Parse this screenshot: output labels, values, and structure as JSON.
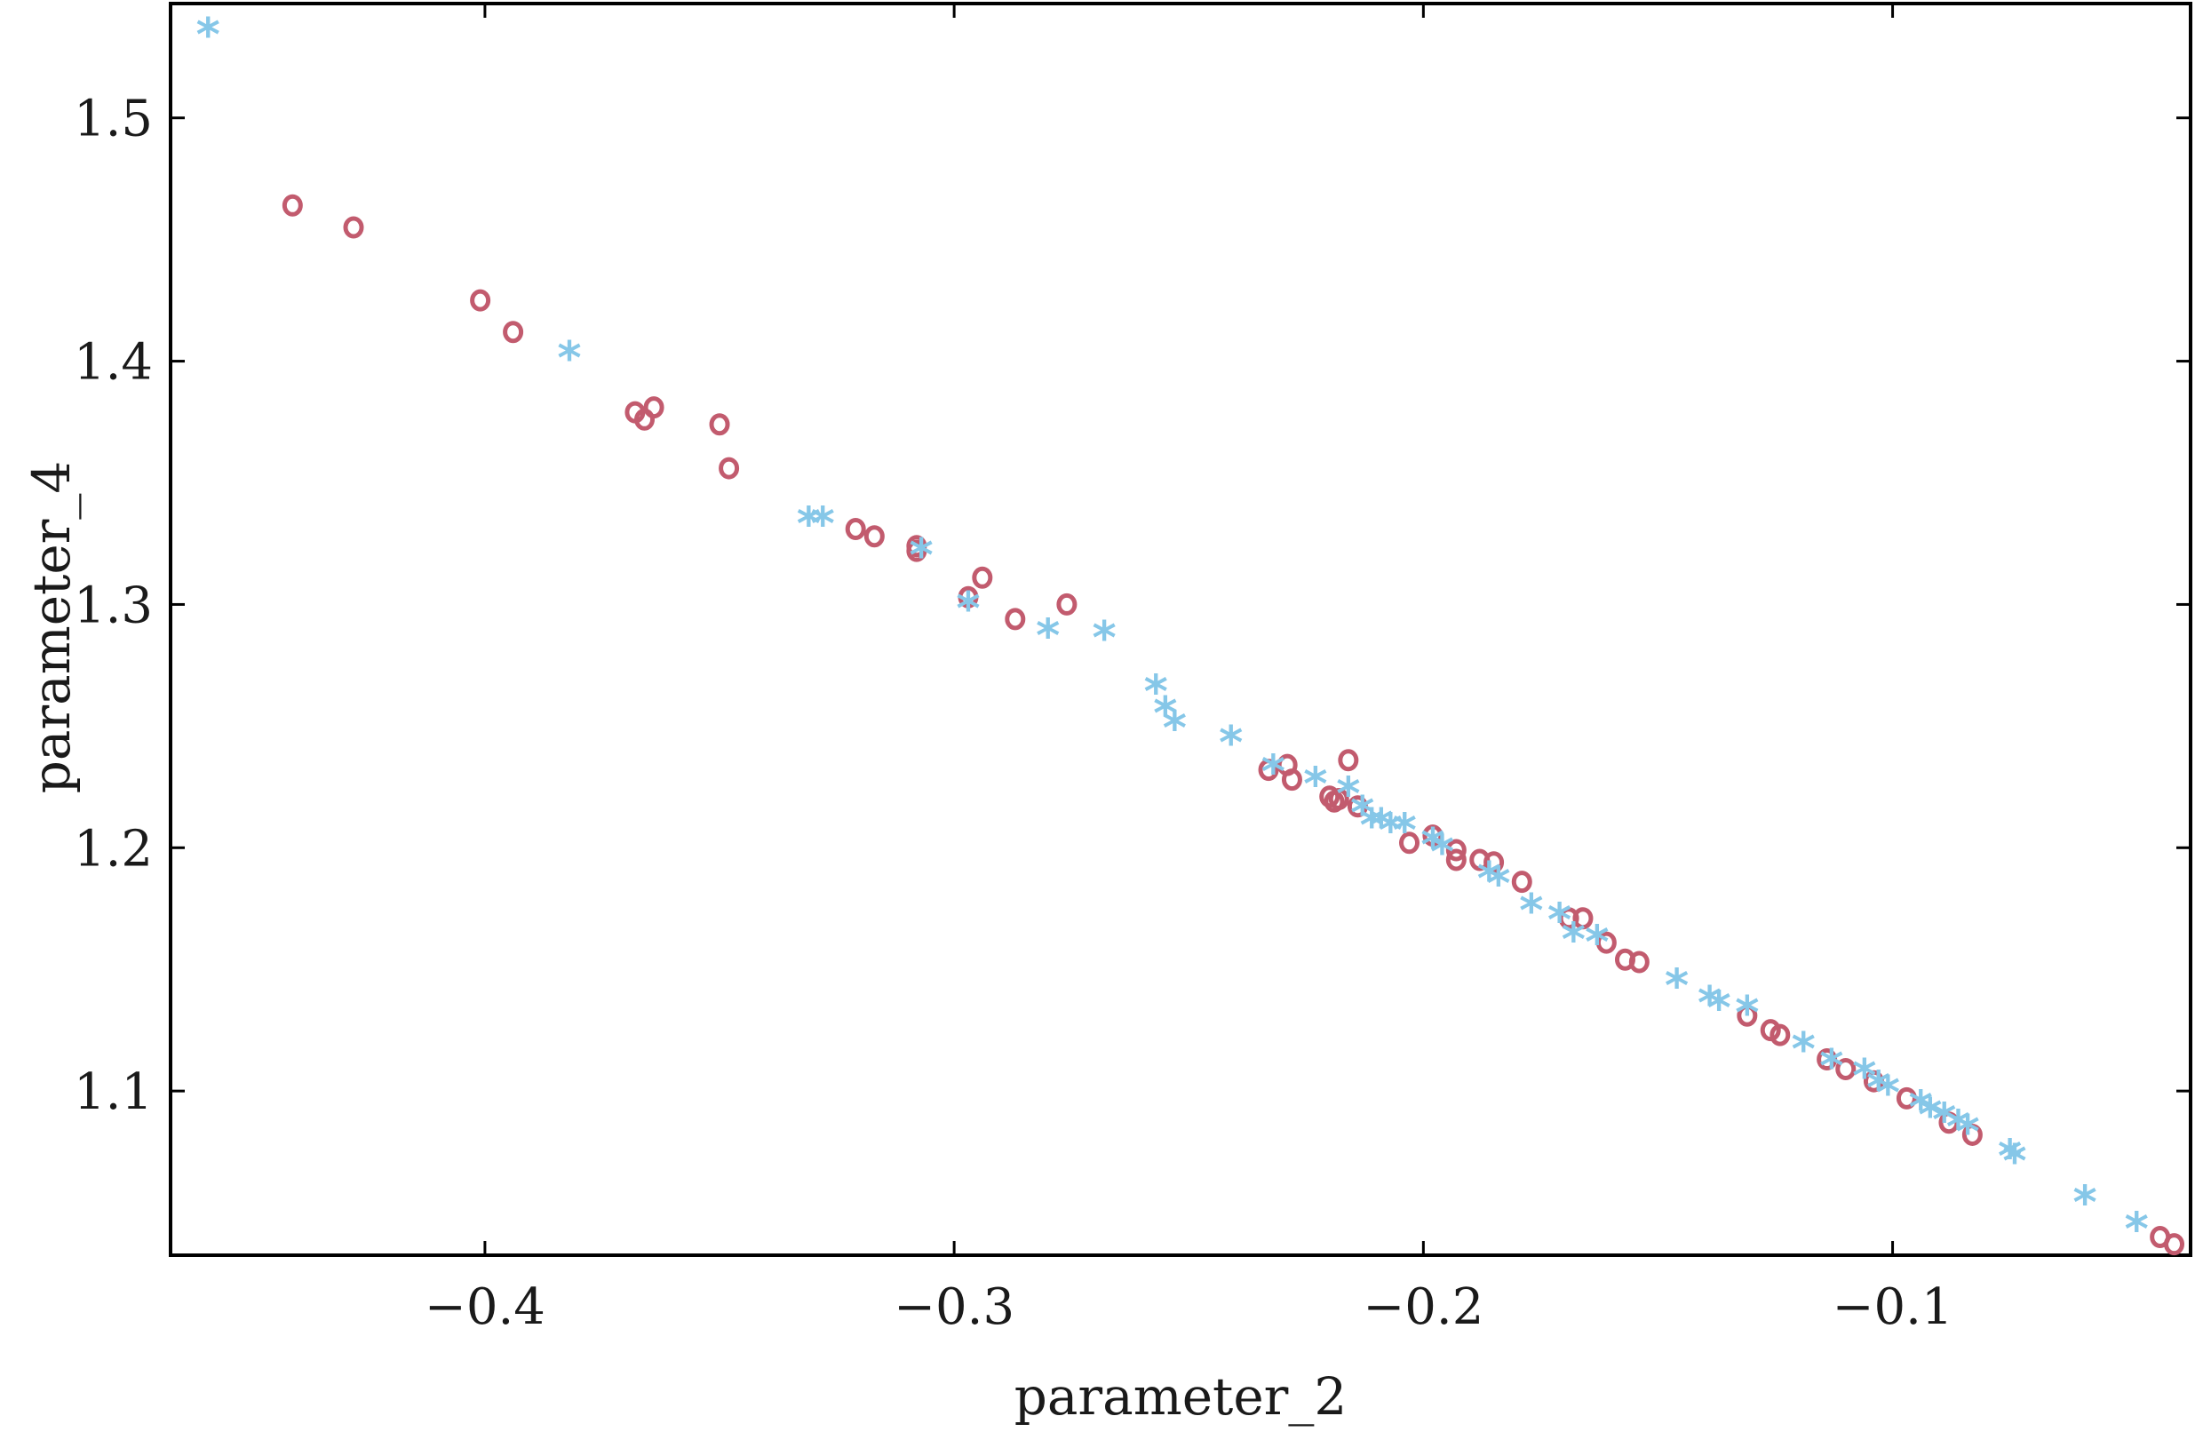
{
  "chart_data": {
    "type": "scatter",
    "xlabel": "parameter_2",
    "ylabel": "parameter_4",
    "xlim": [
      -0.467,
      -0.0365
    ],
    "ylim": [
      1.0325,
      1.547
    ],
    "xticks": [
      -0.4,
      -0.3,
      -0.2,
      -0.1
    ],
    "xtick_labels": [
      "−0.4",
      "−0.3",
      "−0.2",
      "−0.1"
    ],
    "yticks": [
      1.1,
      1.2,
      1.3,
      1.4,
      1.5
    ],
    "ytick_labels": [
      "1.1",
      "1.2",
      "1.3",
      "1.4",
      "1.5"
    ],
    "grid": false,
    "legend": "none",
    "series": [
      {
        "marker": "o",
        "color": "#c25b6e",
        "points": [
          [
            -0.441,
            1.464
          ],
          [
            -0.428,
            1.455
          ],
          [
            -0.401,
            1.425
          ],
          [
            -0.394,
            1.412
          ],
          [
            -0.368,
            1.379
          ],
          [
            -0.366,
            1.376
          ],
          [
            -0.364,
            1.381
          ],
          [
            -0.35,
            1.374
          ],
          [
            -0.348,
            1.356
          ],
          [
            -0.321,
            1.331
          ],
          [
            -0.317,
            1.328
          ],
          [
            -0.308,
            1.324
          ],
          [
            -0.308,
            1.322
          ],
          [
            -0.297,
            1.303
          ],
          [
            -0.294,
            1.311
          ],
          [
            -0.287,
            1.294
          ],
          [
            -0.276,
            1.3
          ],
          [
            -0.233,
            1.232
          ],
          [
            -0.229,
            1.234
          ],
          [
            -0.228,
            1.228
          ],
          [
            -0.22,
            1.221
          ],
          [
            -0.219,
            1.219
          ],
          [
            -0.218,
            1.22
          ],
          [
            -0.216,
            1.236
          ],
          [
            -0.214,
            1.217
          ],
          [
            -0.203,
            1.202
          ],
          [
            -0.198,
            1.205
          ],
          [
            -0.193,
            1.199
          ],
          [
            -0.193,
            1.195
          ],
          [
            -0.188,
            1.195
          ],
          [
            -0.185,
            1.194
          ],
          [
            -0.179,
            1.186
          ],
          [
            -0.169,
            1.171
          ],
          [
            -0.166,
            1.171
          ],
          [
            -0.161,
            1.161
          ],
          [
            -0.157,
            1.154
          ],
          [
            -0.154,
            1.153
          ],
          [
            -0.131,
            1.131
          ],
          [
            -0.126,
            1.125
          ],
          [
            -0.124,
            1.123
          ],
          [
            -0.114,
            1.113
          ],
          [
            -0.11,
            1.109
          ],
          [
            -0.104,
            1.104
          ],
          [
            -0.097,
            1.097
          ],
          [
            -0.088,
            1.087
          ],
          [
            -0.083,
            1.082
          ],
          [
            -0.043,
            1.04
          ],
          [
            -0.04,
            1.037
          ]
        ]
      },
      {
        "marker": "*",
        "color": "#86c7e8",
        "points": [
          [
            -0.459,
            1.535
          ],
          [
            -0.382,
            1.402
          ],
          [
            -0.331,
            1.334
          ],
          [
            -0.328,
            1.334
          ],
          [
            -0.307,
            1.321
          ],
          [
            -0.297,
            1.299
          ],
          [
            -0.28,
            1.288
          ],
          [
            -0.268,
            1.287
          ],
          [
            -0.257,
            1.265
          ],
          [
            -0.255,
            1.256
          ],
          [
            -0.253,
            1.25
          ],
          [
            -0.241,
            1.244
          ],
          [
            -0.232,
            1.232
          ],
          [
            -0.223,
            1.227
          ],
          [
            -0.216,
            1.223
          ],
          [
            -0.213,
            1.215
          ],
          [
            -0.211,
            1.21
          ],
          [
            -0.209,
            1.21
          ],
          [
            -0.207,
            1.208
          ],
          [
            -0.204,
            1.208
          ],
          [
            -0.198,
            1.202
          ],
          [
            -0.196,
            1.199
          ],
          [
            -0.186,
            1.188
          ],
          [
            -0.184,
            1.186
          ],
          [
            -0.177,
            1.175
          ],
          [
            -0.171,
            1.171
          ],
          [
            -0.168,
            1.163
          ],
          [
            -0.163,
            1.162
          ],
          [
            -0.146,
            1.144
          ],
          [
            -0.139,
            1.137
          ],
          [
            -0.137,
            1.135
          ],
          [
            -0.131,
            1.133
          ],
          [
            -0.119,
            1.118
          ],
          [
            -0.113,
            1.111
          ],
          [
            -0.106,
            1.107
          ],
          [
            -0.103,
            1.102
          ],
          [
            -0.101,
            1.1
          ],
          [
            -0.094,
            1.094
          ],
          [
            -0.092,
            1.091
          ],
          [
            -0.089,
            1.089
          ],
          [
            -0.086,
            1.086
          ],
          [
            -0.084,
            1.084
          ],
          [
            -0.075,
            1.074
          ],
          [
            -0.074,
            1.072
          ],
          [
            -0.059,
            1.055
          ],
          [
            -0.048,
            1.044
          ]
        ]
      }
    ]
  }
}
